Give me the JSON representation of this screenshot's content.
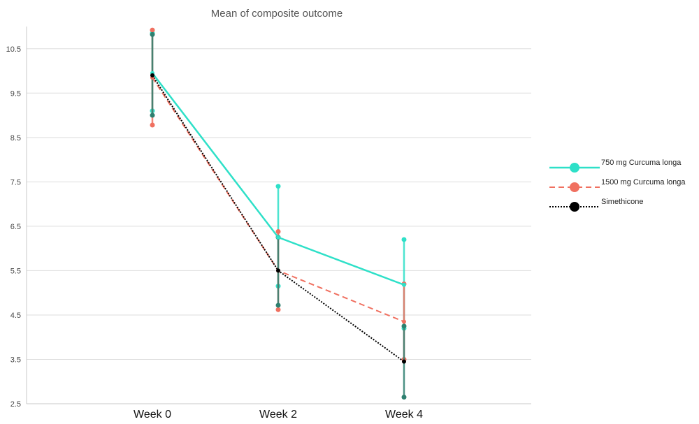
{
  "chart_data": {
    "type": "line",
    "title": "Mean of composite outcome",
    "xlabel": "",
    "ylabel": "",
    "categories": [
      "Week 0",
      "Week 2",
      "Week 4"
    ],
    "ylim": [
      2.5,
      11.0
    ],
    "yticks": [
      "2.5",
      "3.5",
      "4.5",
      "5.5",
      "6.5",
      "7.5",
      "8.5",
      "9.5",
      "10.5"
    ],
    "grid": "horizontal",
    "legend": "right",
    "series": [
      {
        "name": "750 mg Curcuma longa",
        "color": "#2ee0c8",
        "errorbar_color": "#2ee0c8",
        "dash": "solid",
        "marker": "circle",
        "values": [
          9.95,
          6.25,
          5.18
        ],
        "upper": [
          10.85,
          7.4,
          6.2
        ],
        "lower": [
          9.1,
          5.15,
          4.2
        ]
      },
      {
        "name": "1500 mg Curcuma longa",
        "color": "#f07060",
        "errorbar_color": "#f07060",
        "dash": "dashed",
        "marker": "circle",
        "values": [
          9.85,
          5.5,
          4.35
        ],
        "upper": [
          10.92,
          6.38,
          5.2
        ],
        "lower": [
          8.78,
          4.62,
          3.5
        ]
      },
      {
        "name": "Simethicone",
        "color": "#000000",
        "errorbar_color": "#2e8070",
        "dash": "dotted",
        "marker": "circle",
        "values": [
          9.9,
          5.5,
          3.45
        ],
        "upper": [
          10.82,
          6.25,
          4.25
        ],
        "lower": [
          9.0,
          4.72,
          2.65
        ]
      }
    ]
  }
}
